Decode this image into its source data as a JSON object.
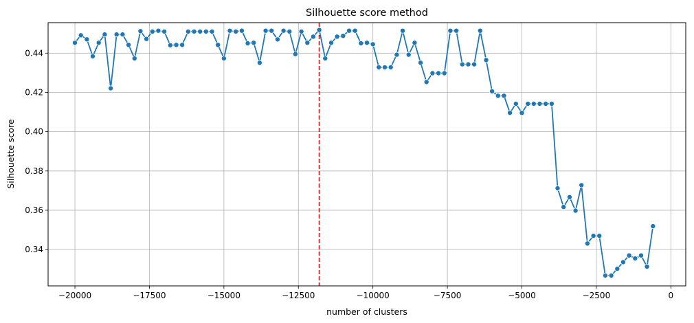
{
  "chart_data": {
    "type": "line",
    "title": "Silhouette score method",
    "xlabel": "number of clusters",
    "ylabel": "Silhouette score",
    "xlim": [
      -20900,
      500
    ],
    "ylim": [
      0.3215,
      0.4555
    ],
    "xticks": [
      -20000,
      -17500,
      -15000,
      -12500,
      -10000,
      -7500,
      -5000,
      -2500,
      0
    ],
    "xtick_labels": [
      "−20000",
      "−17500",
      "−15000",
      "−12500",
      "−10000",
      "−7500",
      "−5000",
      "−2500",
      "0"
    ],
    "yticks": [
      0.34,
      0.36,
      0.38,
      0.4,
      0.42,
      0.44
    ],
    "ytick_labels": [
      "0.34",
      "0.36",
      "0.38",
      "0.40",
      "0.42",
      "0.44"
    ],
    "grid": true,
    "vline": {
      "x": -11800,
      "color": "#d62728",
      "style": "dashed"
    },
    "series": [
      {
        "color": "#1f77b4",
        "marker": "circle",
        "x": [
          -20000,
          -19800,
          -19600,
          -19400,
          -19200,
          -19000,
          -18800,
          -18600,
          -18400,
          -18200,
          -18000,
          -17800,
          -17600,
          -17400,
          -17200,
          -17000,
          -16800,
          -16600,
          -16400,
          -16200,
          -16000,
          -15800,
          -15600,
          -15400,
          -15200,
          -15000,
          -14800,
          -14600,
          -14400,
          -14200,
          -14000,
          -13800,
          -13600,
          -13400,
          -13200,
          -13000,
          -12800,
          -12600,
          -12400,
          -12200,
          -12000,
          -11800,
          -11600,
          -11400,
          -11200,
          -11000,
          -10800,
          -10600,
          -10400,
          -10200,
          -10000,
          -9800,
          -9600,
          -9400,
          -9200,
          -9000,
          -8800,
          -8600,
          -8400,
          -8200,
          -8000,
          -7800,
          -7600,
          -7400,
          -7200,
          -7000,
          -6800,
          -6600,
          -6400,
          -6200,
          -6000,
          -5800,
          -5600,
          -5400,
          -5200,
          -5000,
          -4800,
          -4600,
          -4400,
          -4200,
          -4000,
          -3800,
          -3600,
          -3400,
          -3200,
          -3000,
          -2800,
          -2600,
          -2400,
          -2200,
          -2000,
          -1800,
          -1600,
          -1400,
          -1200,
          -1000,
          -800,
          -600
        ],
        "y": [
          0.4453,
          0.4491,
          0.447,
          0.4384,
          0.4453,
          0.4495,
          0.4221,
          0.4495,
          0.4495,
          0.4442,
          0.4373,
          0.4512,
          0.4472,
          0.451,
          0.4514,
          0.451,
          0.444,
          0.4442,
          0.4442,
          0.451,
          0.451,
          0.451,
          0.451,
          0.451,
          0.4442,
          0.4373,
          0.4514,
          0.451,
          0.4514,
          0.445,
          0.4453,
          0.4351,
          0.4514,
          0.4514,
          0.447,
          0.4514,
          0.451,
          0.4395,
          0.451,
          0.4453,
          0.4484,
          0.4518,
          0.4373,
          0.4453,
          0.4484,
          0.4488,
          0.4514,
          0.4514,
          0.445,
          0.4453,
          0.4445,
          0.4328,
          0.4328,
          0.4328,
          0.4392,
          0.4514,
          0.4392,
          0.4453,
          0.4351,
          0.4253,
          0.4298,
          0.4298,
          0.4298,
          0.4514,
          0.4514,
          0.4343,
          0.4343,
          0.4343,
          0.4514,
          0.4365,
          0.4206,
          0.4183,
          0.4183,
          0.4096,
          0.4142,
          0.4096,
          0.4142,
          0.4142,
          0.4142,
          0.4142,
          0.4142,
          0.3712,
          0.3617,
          0.3667,
          0.3598,
          0.3728,
          0.3431,
          0.347,
          0.347,
          0.3268,
          0.3268,
          0.3302,
          0.3336,
          0.337,
          0.3355,
          0.337,
          0.3313,
          0.3519
        ]
      }
    ]
  }
}
